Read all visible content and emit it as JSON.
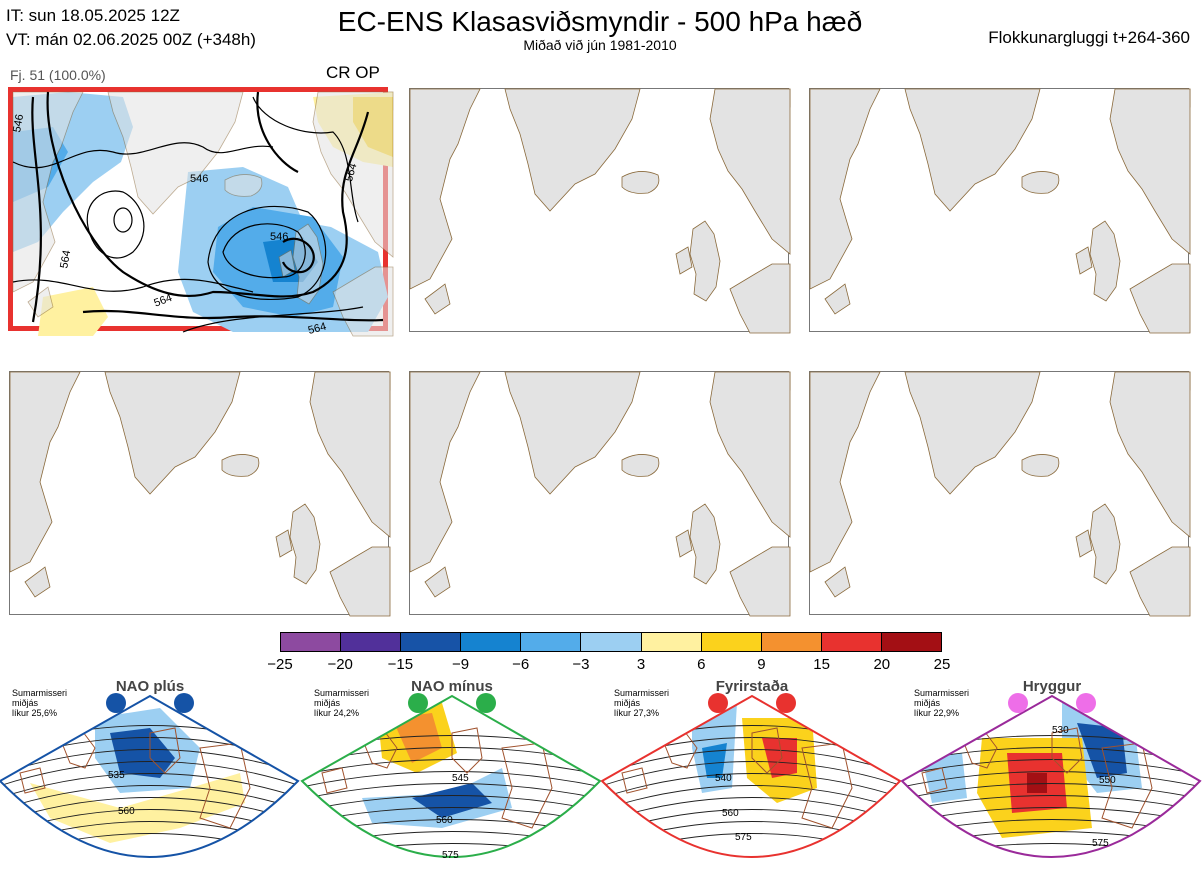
{
  "header": {
    "initial_time": "IT: sun 18.05.2025 12Z",
    "valid_time": "VT: mán 02.06.2025 00Z  (+348h)",
    "title": "EC-ENS Klasasviðsmyndir - 500 hPa hæð",
    "subtitle": "Miðað við jún 1981-2010",
    "window": "Flokkunargluggi t+264-360"
  },
  "panel1": {
    "members": "Fj. 51 (100.0%)",
    "cluster": "CR OP",
    "contour_labels": [
      "546",
      "546",
      "546",
      "564",
      "564",
      "564",
      "564"
    ]
  },
  "colorbar": {
    "ticks": [
      "−25",
      "−20",
      "−15",
      "−9",
      "−6",
      "−3",
      "3",
      "6",
      "9",
      "15",
      "20",
      "25"
    ],
    "colors": [
      "#8d4aa0",
      "#51309a",
      "#1753a7",
      "#1583d0",
      "#53acea",
      "#9ccff2",
      "#ffffff",
      "#fff1a0",
      "#fbd21c",
      "#f4912f",
      "#e8322f",
      "#a30f14"
    ]
  },
  "regimes": [
    {
      "name": "NAO plús",
      "season": "Sumarmisseri",
      "stat": "miðjás",
      "prob": "líkur 25,6%",
      "color": "#1553a6",
      "labels": [
        "535",
        "560"
      ]
    },
    {
      "name": "NAO mínus",
      "season": "Sumarmisseri",
      "stat": "miðjás",
      "prob": "líkur 24,2%",
      "color": "#2bae4a",
      "labels": [
        "545",
        "560",
        "575"
      ]
    },
    {
      "name": "Fyrirstaða",
      "season": "Sumarmisseri",
      "stat": "miðjás",
      "prob": "líkur 27,3%",
      "color": "#e8322f",
      "labels": [
        "540",
        "560",
        "575"
      ]
    },
    {
      "name": "Hryggur",
      "season": "Sumarmisseri",
      "stat": "miðjás",
      "prob": "líkur 22,9%",
      "color": "#9a2a9a",
      "labels": [
        "530",
        "550",
        "575"
      ]
    }
  ]
}
